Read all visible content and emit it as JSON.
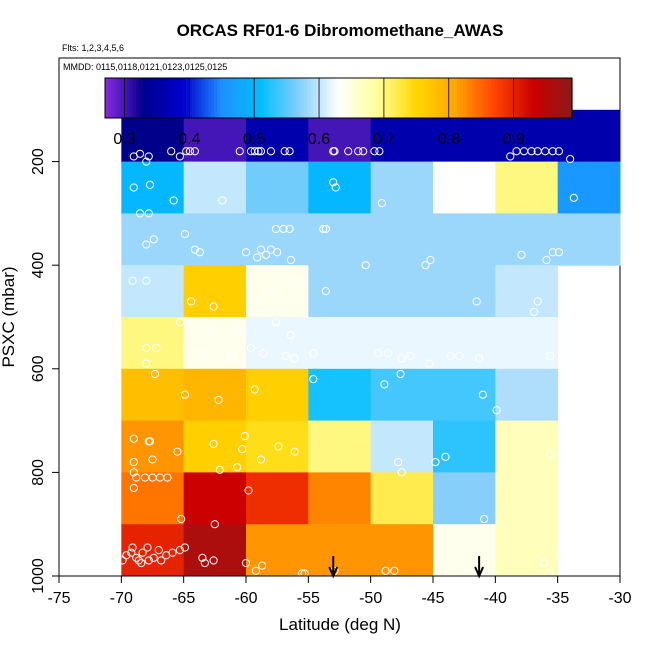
{
  "chart_data": {
    "type": "heatmap",
    "title": "ORCAS RF01-6 Dibromomethane_AWAS",
    "flights_note": "Flts: 1,2,3,4,5,6",
    "dates_note": "MMDD: 0115,0118,0121,0123,0125,0125",
    "xlabel": "Latitude (deg N)",
    "ylabel": "PSXC (mbar)",
    "xlim": [
      -75,
      -30
    ],
    "ylim": [
      1000,
      0
    ],
    "x_ticks": [
      -75,
      -70,
      -65,
      -60,
      -55,
      -50,
      -45,
      -40,
      -35,
      -30
    ],
    "y_ticks": [
      200,
      400,
      600,
      800,
      1000
    ],
    "colorbar": {
      "range": [
        0.27,
        0.99
      ],
      "ticks": [
        0.3,
        0.4,
        0.5,
        0.6,
        0.7,
        0.8,
        0.9
      ],
      "colors": [
        "#8a2be2",
        "#00008b",
        "#0000cd",
        "#1e90ff",
        "#00bfff",
        "#87cefa",
        "#ffffff",
        "#ffff99",
        "#ffd700",
        "#ffa500",
        "#ff4500",
        "#cc0000",
        "#8b1a1a"
      ]
    },
    "lat_bins": [
      -70,
      -65,
      -60,
      -55,
      -50,
      -45,
      -40,
      -35
    ],
    "pressure_bins": [
      100,
      200,
      300,
      400,
      500,
      600,
      700,
      800,
      900,
      1000
    ],
    "grid": [
      [
        0.33,
        0.3,
        0.36,
        0.3,
        0.36,
        0.36,
        0.36,
        0.36
      ],
      [
        0.5,
        0.6,
        0.56,
        0.5,
        0.58,
        0.63,
        0.7,
        0.46
      ],
      [
        0.58,
        0.58,
        0.58,
        0.58,
        0.58,
        0.58,
        0.58,
        0.58
      ],
      [
        0.6,
        0.76,
        0.64,
        0.58,
        0.58,
        0.58,
        0.6,
        null
      ],
      [
        0.7,
        0.64,
        0.62,
        0.62,
        0.62,
        0.62,
        0.62,
        null
      ],
      [
        0.78,
        0.79,
        0.76,
        0.52,
        0.54,
        0.54,
        0.59,
        null
      ],
      [
        0.82,
        0.76,
        0.74,
        0.7,
        0.6,
        0.53,
        0.67,
        null
      ],
      [
        0.84,
        0.93,
        0.89,
        0.83,
        0.72,
        0.57,
        0.67,
        null
      ],
      [
        0.9,
        0.96,
        0.82,
        0.82,
        0.82,
        0.64,
        0.67,
        null
      ]
    ],
    "samples": [
      [
        -69,
        190
      ],
      [
        -68.5,
        185
      ],
      [
        -68,
        200
      ],
      [
        -67.8,
        190
      ],
      [
        -66,
        180
      ],
      [
        -65.3,
        190
      ],
      [
        -64.8,
        180
      ],
      [
        -64.5,
        180
      ],
      [
        -64.1,
        180
      ],
      [
        -60.5,
        180
      ],
      [
        -59.6,
        180
      ],
      [
        -59.3,
        180
      ],
      [
        -59,
        180
      ],
      [
        -58.8,
        180
      ],
      [
        -58,
        180
      ],
      [
        -56.9,
        180
      ],
      [
        -56.5,
        180
      ],
      [
        -53,
        180
      ],
      [
        -52.9,
        180
      ],
      [
        -51.8,
        180
      ],
      [
        -51,
        180
      ],
      [
        -50.6,
        180
      ],
      [
        -49.7,
        180
      ],
      [
        -49.3,
        180
      ],
      [
        -38.8,
        190
      ],
      [
        -38.3,
        180
      ],
      [
        -37.7,
        180
      ],
      [
        -37.1,
        180
      ],
      [
        -36.6,
        180
      ],
      [
        -36,
        180
      ],
      [
        -35.4,
        180
      ],
      [
        -34.9,
        180
      ],
      [
        -34,
        195
      ],
      [
        -69,
        250
      ],
      [
        -68.5,
        300
      ],
      [
        -67.8,
        300
      ],
      [
        -67.7,
        245
      ],
      [
        -65.8,
        275
      ],
      [
        -61.9,
        275
      ],
      [
        -53,
        240
      ],
      [
        -52.8,
        250
      ],
      [
        -49.1,
        280
      ],
      [
        -33.7,
        270
      ],
      [
        -68,
        360
      ],
      [
        -67.4,
        350
      ],
      [
        -64.9,
        340
      ],
      [
        -64.1,
        370
      ],
      [
        -63.7,
        375
      ],
      [
        -60,
        375
      ],
      [
        -59.1,
        385
      ],
      [
        -58.8,
        370
      ],
      [
        -58.4,
        380
      ],
      [
        -58,
        370
      ],
      [
        -57.6,
        330
      ],
      [
        -57.5,
        375
      ],
      [
        -57,
        330
      ],
      [
        -56.5,
        330
      ],
      [
        -56.4,
        390
      ],
      [
        -53.8,
        330
      ],
      [
        -53.6,
        330
      ],
      [
        -50.4,
        400
      ],
      [
        -45.6,
        400
      ],
      [
        -45.2,
        390
      ],
      [
        -37.9,
        380
      ],
      [
        -35.9,
        390
      ],
      [
        -35.4,
        375
      ],
      [
        -34.9,
        375
      ],
      [
        -69.1,
        430
      ],
      [
        -68,
        430
      ],
      [
        -64.4,
        470
      ],
      [
        -62.6,
        480
      ],
      [
        -58,
        455
      ],
      [
        -55.8,
        430
      ],
      [
        -53.6,
        450
      ],
      [
        -41.5,
        470
      ],
      [
        -36.9,
        490
      ],
      [
        -36.6,
        470
      ],
      [
        -65.3,
        510
      ],
      [
        -62.8,
        530
      ],
      [
        -60.6,
        530
      ],
      [
        -59.6,
        560
      ],
      [
        -57.6,
        510
      ],
      [
        -56.8,
        575
      ],
      [
        -56.4,
        535
      ],
      [
        -68,
        560
      ],
      [
        -68,
        590
      ],
      [
        -67.2,
        560
      ],
      [
        -67.3,
        610
      ],
      [
        -63.6,
        570
      ],
      [
        -61.1,
        580
      ],
      [
        -58.6,
        570
      ],
      [
        -56.1,
        580
      ],
      [
        -54.6,
        570
      ],
      [
        -49.4,
        570
      ],
      [
        -48.6,
        570
      ],
      [
        -47.5,
        580
      ],
      [
        -47.6,
        610
      ],
      [
        -46.8,
        575
      ],
      [
        -45.3,
        590
      ],
      [
        -43.6,
        575
      ],
      [
        -42.9,
        575
      ],
      [
        -41.3,
        580
      ],
      [
        -35.6,
        575
      ],
      [
        -54.6,
        620
      ],
      [
        -64.9,
        650
      ],
      [
        -62.2,
        660
      ],
      [
        -59.3,
        640
      ],
      [
        -48.9,
        630
      ],
      [
        -41,
        650
      ],
      [
        -39.9,
        680
      ],
      [
        -69,
        735
      ],
      [
        -67.8,
        740
      ],
      [
        -67.7,
        740
      ],
      [
        -69,
        780
      ],
      [
        -69,
        800
      ],
      [
        -68.8,
        810
      ],
      [
        -69,
        830
      ],
      [
        -68.1,
        810
      ],
      [
        -67.5,
        810
      ],
      [
        -67.5,
        775
      ],
      [
        -66.9,
        810
      ],
      [
        -66.3,
        810
      ],
      [
        -65.5,
        760
      ],
      [
        -62.6,
        745
      ],
      [
        -62.1,
        795
      ],
      [
        -60.7,
        790
      ],
      [
        -60.3,
        755
      ],
      [
        -60.1,
        730
      ],
      [
        -58.8,
        775
      ],
      [
        -57.4,
        750
      ],
      [
        -56.1,
        760
      ],
      [
        -47.8,
        780
      ],
      [
        -47.5,
        800
      ],
      [
        -44.8,
        780
      ],
      [
        -44,
        770
      ],
      [
        -35.6,
        765
      ],
      [
        -59.8,
        835
      ],
      [
        -65.2,
        890
      ],
      [
        -62.5,
        900
      ],
      [
        -40.9,
        890
      ],
      [
        -69.9,
        970
      ],
      [
        -69.6,
        960
      ],
      [
        -69.2,
        955
      ],
      [
        -69.1,
        945
      ],
      [
        -68.8,
        965
      ],
      [
        -68.6,
        970
      ],
      [
        -68.4,
        975
      ],
      [
        -68.3,
        955
      ],
      [
        -67.9,
        945
      ],
      [
        -67.8,
        970
      ],
      [
        -67.4,
        965
      ],
      [
        -67,
        950
      ],
      [
        -66.8,
        970
      ],
      [
        -66.4,
        960
      ],
      [
        -65.9,
        955
      ],
      [
        -65.3,
        950
      ],
      [
        -64.9,
        945
      ],
      [
        -63.5,
        965
      ],
      [
        -63.3,
        975
      ],
      [
        -62.6,
        970
      ],
      [
        -60,
        975
      ],
      [
        -59.2,
        990
      ],
      [
        -58.7,
        980
      ],
      [
        -55.5,
        995
      ],
      [
        -55.3,
        995
      ],
      [
        -52.9,
        990
      ],
      [
        -48.8,
        990
      ],
      [
        -48.1,
        990
      ],
      [
        -44.6,
        975
      ],
      [
        -41,
        995
      ],
      [
        -36.1,
        975
      ],
      [
        -35.7,
        995
      ]
    ],
    "arrow_latitudes": [
      -53,
      -41.3
    ]
  }
}
